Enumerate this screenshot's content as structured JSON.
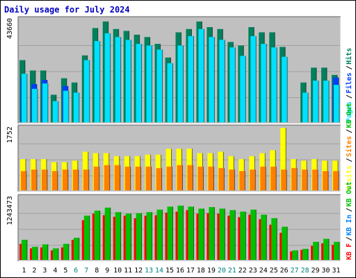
{
  "chart_data": {
    "type": "bar",
    "title": "Daily usage for July 2024",
    "categories": [
      "1",
      "2",
      "3",
      "4",
      "5",
      "6",
      "7",
      "8",
      "9",
      "10",
      "11",
      "12",
      "13",
      "14",
      "15",
      "16",
      "17",
      "18",
      "19",
      "20",
      "21",
      "22",
      "23",
      "24",
      "25",
      "26",
      "27",
      "28",
      "29",
      "30",
      "31"
    ],
    "weekend_days": [
      "6",
      "7",
      "13",
      "14",
      "20",
      "21",
      "27",
      "28"
    ],
    "colors": {
      "hits": "#00805C",
      "files": "#0040FF",
      "pages": "#00E0FF",
      "visits": "#FFFF00",
      "sites": "#FF8000",
      "kbin": "#0080FF",
      "kbout": "#00C000",
      "kbf": "#FF0000",
      "background": "#C0C0C0",
      "grid": "#A0A0A0",
      "title": "#0000C0",
      "weekend": "#008080",
      "weekday": "#000000"
    },
    "panels": [
      {
        "id": "hits-files-pages",
        "max_label": "43660",
        "ymax": 43660,
        "legend": [
          {
            "text": "Pages",
            "color": "#00E0FF"
          },
          {
            "text": "/",
            "color": "#000000"
          },
          {
            "text": "Files",
            "color": "#0040FF"
          },
          {
            "text": "/",
            "color": "#000000"
          },
          {
            "text": "Hits",
            "color": "#00805C"
          }
        ],
        "series": [
          {
            "name": "Hits",
            "color": "#00805C",
            "values": [
              26400,
              22000,
              22000,
              11700,
              18700,
              16900,
              28400,
              40000,
              42800,
              39600,
              38800,
              37200,
              36200,
              33300,
              27500,
              38200,
              39600,
              42800,
              40400,
              39600,
              34100,
              32600,
              40400,
              38200,
              38200,
              32000,
              0,
              16900,
              23200,
              23200,
              20100
            ]
          },
          {
            "name": "Files",
            "color": "#0040FF",
            "values": [
              19000,
              16200,
              18000,
              0,
              15400,
              0,
              0,
              0,
              0,
              0,
              0,
              0,
              0,
              0,
              0,
              0,
              0,
              0,
              0,
              0,
              0,
              0,
              0,
              0,
              0,
              0,
              0,
              0,
              0,
              0,
              19000
            ]
          },
          {
            "name": "Pages",
            "color": "#00E0FF",
            "values": [
              20600,
              14200,
              16500,
              9000,
              13400,
              12600,
              26400,
              34500,
              37800,
              36200,
              35000,
              33300,
              32600,
              30900,
              25100,
              32600,
              36600,
              39600,
              36200,
              35000,
              31800,
              28200,
              36600,
              33300,
              31800,
              27800,
              0,
              12600,
              17700,
              17700,
              15900
            ]
          }
        ]
      },
      {
        "id": "visits-sites",
        "max_label": "1752",
        "ymax": 1752,
        "legend": [
          {
            "text": "Visits",
            "color": "#FFFF00"
          },
          {
            "text": "/",
            "color": "#000000"
          },
          {
            "text": "Sites",
            "color": "#FF8000"
          },
          {
            "text": "/",
            "color": "#000000"
          },
          {
            "text": "KB Out",
            "color": "#00C000"
          }
        ],
        "series": [
          {
            "name": "Visits",
            "color": "#FFFF00",
            "values": [
              875,
              875,
              875,
              792,
              792,
              834,
              1084,
              1043,
              1043,
              959,
              959,
              959,
              1001,
              1001,
              1168,
              1168,
              1168,
              1043,
              1043,
              1084,
              959,
              875,
              959,
              1043,
              1126,
              1752,
              875,
              834,
              875,
              834,
              834
            ]
          },
          {
            "name": "Sites",
            "color": "#FF8000",
            "values": [
              542,
              584,
              584,
              542,
              584,
              584,
              584,
              667,
              709,
              709,
              667,
              667,
              667,
              626,
              667,
              709,
              709,
              667,
              667,
              626,
              584,
              542,
              584,
              667,
              667,
              584,
              626,
              584,
              584,
              542,
              542
            ]
          }
        ]
      },
      {
        "id": "kb",
        "max_label": "1243473",
        "ymax": 1243473,
        "legend": [
          {
            "text": "KB F",
            "color": "#FF0000"
          },
          {
            "text": "/",
            "color": "#000000"
          },
          {
            "text": "KB In",
            "color": "#0080FF"
          },
          {
            "text": "/",
            "color": "#000000"
          },
          {
            "text": "KB Out",
            "color": "#00C000"
          }
        ],
        "series": [
          {
            "name": "KB F",
            "color": "#FF0000",
            "values": [
              320000,
              230000,
              250000,
              190000,
              250000,
              400000,
              790000,
              920000,
              890000,
              860000,
              880000,
              830000,
              880000,
              890000,
              940000,
              960000,
              990000,
              920000,
              930000,
              920000,
              880000,
              850000,
              900000,
              810000,
              700000,
              540000,
              170000,
              200000,
              280000,
              330000,
              300000
            ]
          },
          {
            "name": "KB Out",
            "color": "#00C000",
            "values": [
              400000,
              260000,
              310000,
              230000,
              320000,
              440000,
              880000,
              980000,
              1040000,
              950000,
              920000,
              930000,
              950000,
              1000000,
              1060000,
              1080000,
              1060000,
              1020000,
              1050000,
              1020000,
              990000,
              960000,
              1000000,
              900000,
              830000,
              660000,
              190000,
              220000,
              360000,
              420000,
              360000
            ]
          }
        ]
      }
    ]
  }
}
